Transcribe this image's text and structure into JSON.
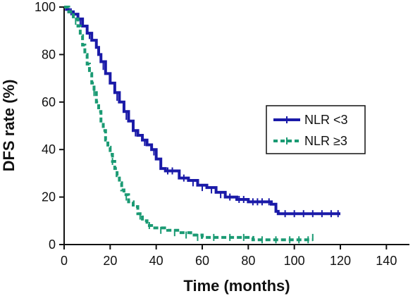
{
  "chart_data": {
    "type": "line",
    "xlabel": "Time (months)",
    "ylabel": "DFS rate (%)",
    "xlim": [
      0,
      150
    ],
    "ylim": [
      0,
      100
    ],
    "x_ticks": [
      "0",
      "20",
      "40",
      "60",
      "80",
      "100",
      "120",
      "140"
    ],
    "y_ticks": [
      "0",
      "20",
      "40",
      "60",
      "80",
      "100"
    ],
    "grid": false,
    "legend_position": "right",
    "step_curve": true,
    "censor_marks": true,
    "series": [
      {
        "name": "NLR <3",
        "color": "#1a1aa8",
        "style": "solid",
        "points": [
          [
            0,
            100
          ],
          [
            1,
            99
          ],
          [
            2,
            98
          ],
          [
            4,
            97
          ],
          [
            6,
            95
          ],
          [
            8,
            92
          ],
          [
            10,
            89
          ],
          [
            12,
            86
          ],
          [
            14,
            83
          ],
          [
            15,
            80
          ],
          [
            16,
            77
          ],
          [
            18,
            72
          ],
          [
            20,
            68
          ],
          [
            22,
            64
          ],
          [
            24,
            60
          ],
          [
            26,
            56
          ],
          [
            28,
            52
          ],
          [
            30,
            48
          ],
          [
            32,
            46
          ],
          [
            34,
            44
          ],
          [
            36,
            42
          ],
          [
            38,
            40
          ],
          [
            40,
            36
          ],
          [
            42,
            32
          ],
          [
            44,
            31
          ],
          [
            48,
            31
          ],
          [
            50,
            28
          ],
          [
            54,
            27
          ],
          [
            58,
            25
          ],
          [
            62,
            24
          ],
          [
            66,
            22
          ],
          [
            70,
            20
          ],
          [
            75,
            19
          ],
          [
            80,
            18
          ],
          [
            88,
            18
          ],
          [
            90,
            17
          ],
          [
            92,
            14
          ],
          [
            93,
            13
          ],
          [
            120,
            13
          ]
        ],
        "censored": [
          [
            3,
            98
          ],
          [
            7,
            94
          ],
          [
            11,
            88
          ],
          [
            17,
            75
          ],
          [
            23,
            62
          ],
          [
            27,
            54
          ],
          [
            31,
            47
          ],
          [
            35,
            43
          ],
          [
            39,
            39
          ],
          [
            45,
            31
          ],
          [
            47,
            31
          ],
          [
            52,
            28
          ],
          [
            56,
            26
          ],
          [
            60,
            24
          ],
          [
            64,
            23
          ],
          [
            68,
            21
          ],
          [
            72,
            20
          ],
          [
            76,
            19
          ],
          [
            78,
            19
          ],
          [
            82,
            18
          ],
          [
            84,
            18
          ],
          [
            86,
            18
          ],
          [
            89,
            18
          ],
          [
            96,
            13
          ],
          [
            100,
            13
          ],
          [
            104,
            13
          ],
          [
            108,
            13
          ],
          [
            112,
            13
          ],
          [
            116,
            13
          ],
          [
            119,
            13
          ]
        ]
      },
      {
        "name": "NLR ≥3",
        "color": "#1a9a73",
        "style": "dashed",
        "points": [
          [
            0,
            100
          ],
          [
            2,
            98
          ],
          [
            4,
            95
          ],
          [
            6,
            92
          ],
          [
            7,
            88
          ],
          [
            8,
            84
          ],
          [
            9,
            80
          ],
          [
            10,
            76
          ],
          [
            11,
            72
          ],
          [
            12,
            68
          ],
          [
            13,
            64
          ],
          [
            14,
            60
          ],
          [
            15,
            56
          ],
          [
            16,
            52
          ],
          [
            17,
            48
          ],
          [
            18,
            44
          ],
          [
            19,
            41
          ],
          [
            20,
            38
          ],
          [
            21,
            35
          ],
          [
            22,
            32
          ],
          [
            23,
            29
          ],
          [
            24,
            26
          ],
          [
            25,
            23
          ],
          [
            26,
            21
          ],
          [
            28,
            18
          ],
          [
            30,
            16
          ],
          [
            32,
            13
          ],
          [
            34,
            10
          ],
          [
            36,
            8
          ],
          [
            38,
            7
          ],
          [
            45,
            6
          ],
          [
            50,
            5
          ],
          [
            55,
            4
          ],
          [
            60,
            3
          ],
          [
            80,
            3
          ],
          [
            82,
            2
          ],
          [
            108,
            2
          ]
        ],
        "censored": [
          [
            5,
            94
          ],
          [
            13,
            64
          ],
          [
            21,
            35
          ],
          [
            27,
            20
          ],
          [
            33,
            12
          ],
          [
            37,
            8
          ],
          [
            42,
            6
          ],
          [
            48,
            5
          ],
          [
            53,
            4
          ],
          [
            58,
            3
          ],
          [
            65,
            3
          ],
          [
            72,
            3
          ],
          [
            78,
            3
          ],
          [
            86,
            2
          ],
          [
            92,
            2
          ],
          [
            98,
            2
          ],
          [
            102,
            2
          ],
          [
            106,
            2
          ],
          [
            108,
            3
          ]
        ]
      }
    ]
  }
}
